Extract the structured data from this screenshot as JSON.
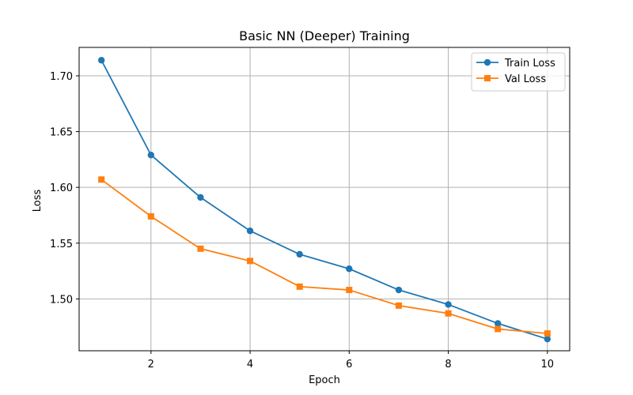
{
  "chart_data": {
    "type": "line",
    "title": "Basic NN (Deeper) Training",
    "xlabel": "Epoch",
    "ylabel": "Loss",
    "x": [
      1,
      2,
      3,
      4,
      5,
      6,
      7,
      8,
      9,
      10
    ],
    "xlim": [
      0.55,
      10.45
    ],
    "ylim": [
      1.4535,
      1.7255
    ],
    "xticks": [
      2,
      4,
      6,
      8,
      10
    ],
    "yticks": [
      1.5,
      1.55,
      1.6,
      1.65,
      1.7
    ],
    "ytick_labels": [
      "1.50",
      "1.55",
      "1.60",
      "1.65",
      "1.70"
    ],
    "grid": true,
    "legend_position": "top-right",
    "series": [
      {
        "name": "Train Loss",
        "color": "#1f77b4",
        "marker": "circle",
        "values": [
          1.714,
          1.629,
          1.591,
          1.561,
          1.54,
          1.527,
          1.508,
          1.495,
          1.478,
          1.464
        ]
      },
      {
        "name": "Val Loss",
        "color": "#ff7f0e",
        "marker": "square",
        "values": [
          1.607,
          1.574,
          1.545,
          1.534,
          1.511,
          1.508,
          1.494,
          1.487,
          1.473,
          1.469
        ]
      }
    ]
  }
}
